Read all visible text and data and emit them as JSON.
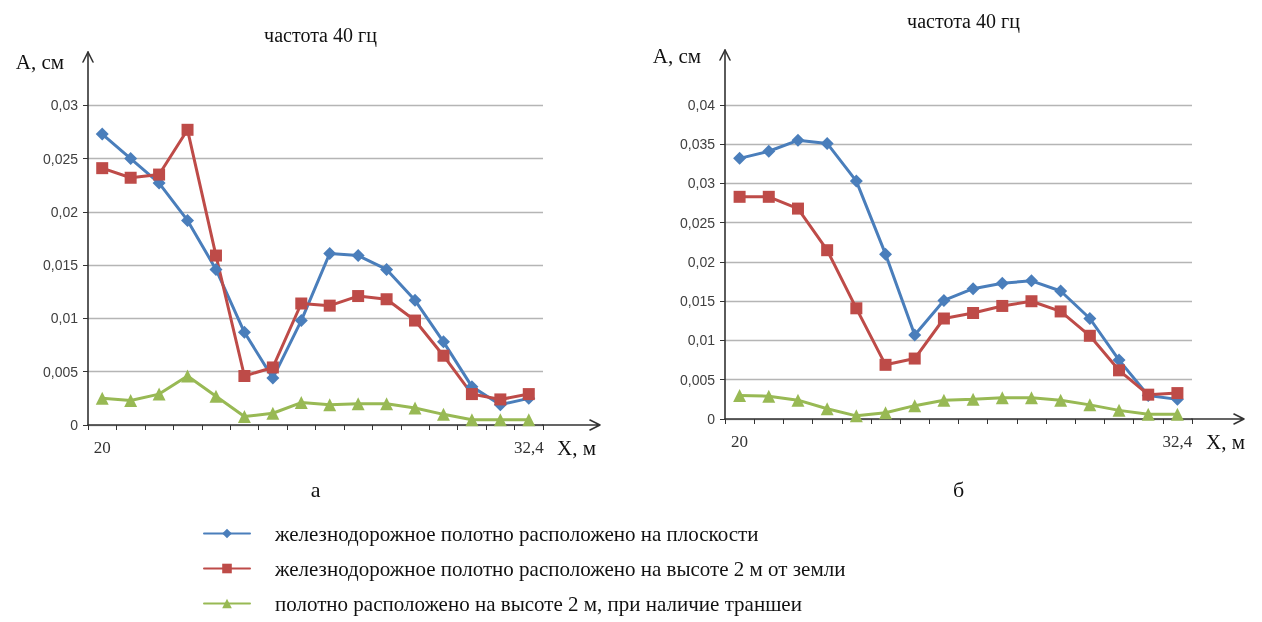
{
  "chart_data": [
    {
      "type": "line",
      "title": "частота 40 гц",
      "xlabel": "X, м",
      "ylabel": "А, см",
      "annotations": [
        "а"
      ],
      "categories": [
        "20",
        null,
        null,
        null,
        null,
        null,
        null,
        null,
        null,
        null,
        null,
        null,
        null,
        null,
        null,
        "32,4"
      ],
      "ylim": [
        0,
        0.035
      ],
      "yticks": [
        0,
        {
          "value": 0.005,
          "label": "0,005"
        },
        {
          "value": 0.01,
          "label": "0,01"
        },
        {
          "value": 0.015,
          "label": "0,015"
        },
        {
          "value": 0.02,
          "label": "0,02"
        },
        {
          "value": 0.025,
          "label": "0,025"
        },
        {
          "value": 0.03,
          "label": "0,03"
        }
      ],
      "grid": "y",
      "legend": "bottom",
      "series": [
        {
          "name": "железнодорожное полотно расположено на плоскости",
          "color": "#4a7ebb",
          "marker": "diamond",
          "values": [
            0.0273,
            0.025,
            0.0227,
            0.0192,
            0.0146,
            0.0087,
            0.0044,
            0.0098,
            0.0161,
            0.0159,
            0.0146,
            0.0117,
            0.0078,
            0.0036,
            0.0019,
            0.0025
          ]
        },
        {
          "name": "железнодорожное полотно расположено на высоте 2 м от земли",
          "color": "#be4b48",
          "marker": "square",
          "values": [
            0.0241,
            0.0232,
            0.0235,
            0.0277,
            0.0159,
            0.0046,
            0.0054,
            0.0114,
            0.0112,
            0.0121,
            0.0118,
            0.0098,
            0.0065,
            0.0029,
            0.0024,
            0.0029
          ]
        },
        {
          "name": "полотно расположено на высоте 2 м, при наличие траншеи",
          "color": "#98b954",
          "marker": "triangle",
          "values": [
            0.0025,
            0.0023,
            0.0029,
            0.0046,
            0.0027,
            0.0008,
            0.0011,
            0.0021,
            0.0019,
            0.002,
            0.002,
            0.0016,
            0.001,
            0.0005,
            0.0005,
            0.0005
          ]
        }
      ]
    },
    {
      "type": "line",
      "title": "частота 40 гц",
      "xlabel": "X, м",
      "ylabel": "А, см",
      "annotations": [
        "б"
      ],
      "categories": [
        "20",
        null,
        null,
        null,
        null,
        null,
        null,
        null,
        null,
        null,
        null,
        null,
        null,
        null,
        null,
        "32,4"
      ],
      "ylim": [
        0,
        0.047
      ],
      "yticks": [
        0,
        {
          "value": 0.005,
          "label": "0,005"
        },
        {
          "value": 0.01,
          "label": "0,01"
        },
        {
          "value": 0.015,
          "label": "0,015"
        },
        {
          "value": 0.02,
          "label": "0,02"
        },
        {
          "value": 0.025,
          "label": "0,025"
        },
        {
          "value": 0.03,
          "label": "0,03"
        },
        {
          "value": 0.035,
          "label": "0,035"
        },
        {
          "value": 0.04,
          "label": "0,04"
        }
      ],
      "grid": "y",
      "series": [
        {
          "color": "#4a7ebb",
          "marker": "diamond",
          "values": [
            0.0332,
            0.0341,
            0.0355,
            0.0351,
            0.0303,
            0.021,
            0.0107,
            0.0151,
            0.0166,
            0.0173,
            0.0176,
            0.0163,
            0.0128,
            0.0075,
            0.003,
            0.0025
          ]
        },
        {
          "color": "#be4b48",
          "marker": "square",
          "values": [
            0.0283,
            0.0283,
            0.0268,
            0.0215,
            0.0141,
            0.0069,
            0.0077,
            0.0128,
            0.0135,
            0.0144,
            0.015,
            0.0137,
            0.0106,
            0.0062,
            0.0031,
            0.0033
          ]
        },
        {
          "color": "#98b954",
          "marker": "triangle",
          "values": [
            0.003,
            0.0029,
            0.0024,
            0.0013,
            0.0004,
            0.0008,
            0.0017,
            0.0024,
            0.0025,
            0.0027,
            0.0027,
            0.0024,
            0.0018,
            0.0011,
            0.0006,
            0.0006
          ]
        }
      ]
    }
  ]
}
